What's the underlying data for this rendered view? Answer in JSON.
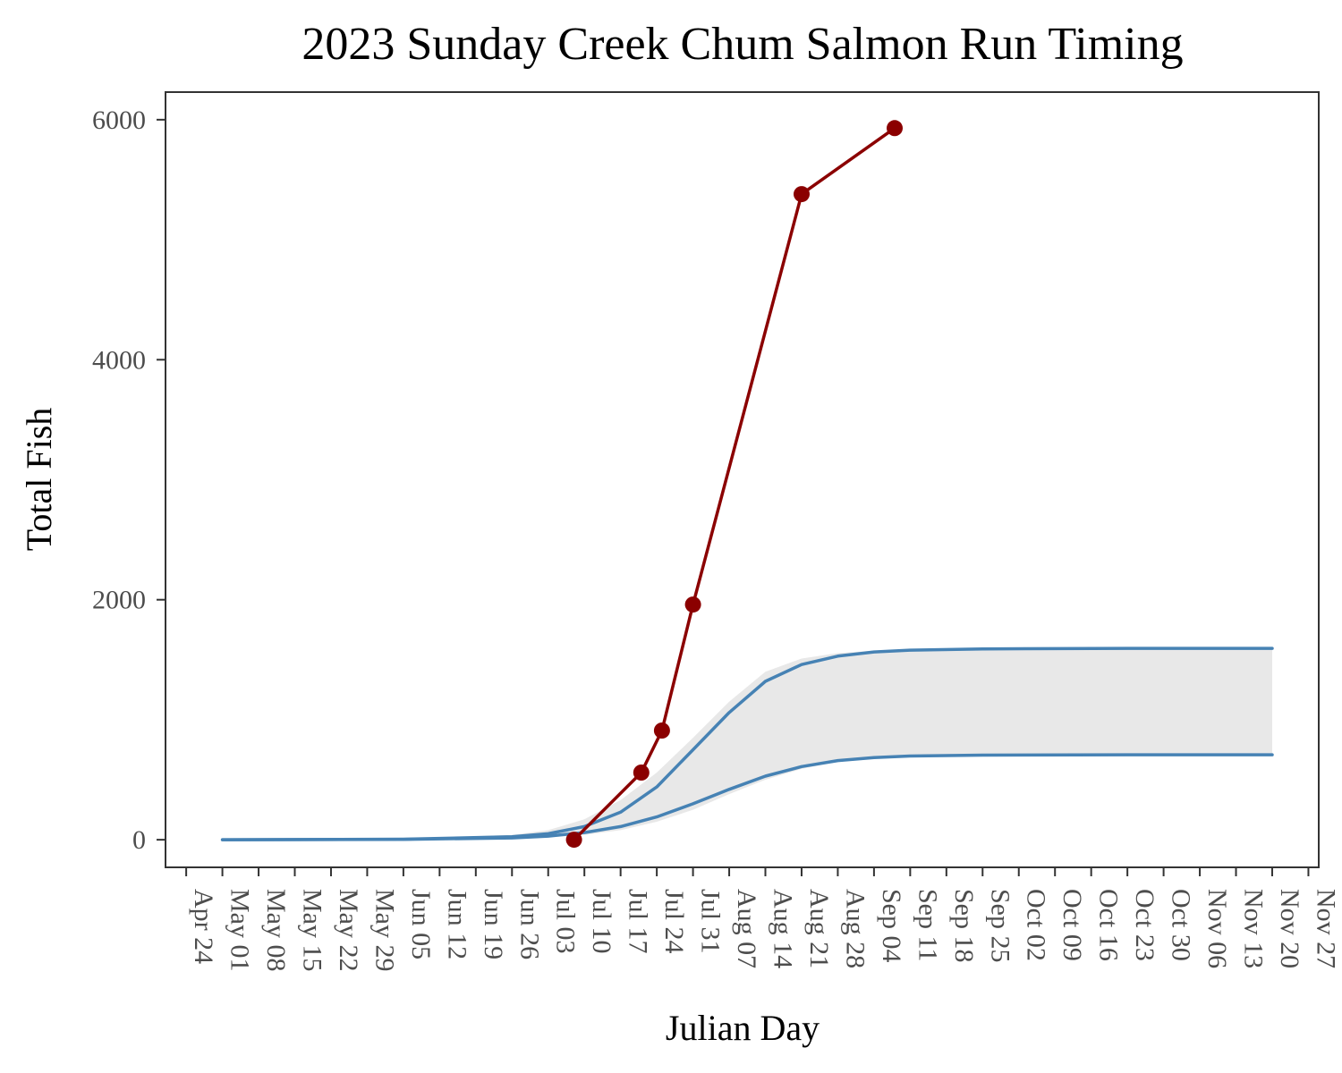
{
  "chart_data": {
    "type": "line",
    "title": "2023 Sunday Creek Chum Salmon Run Timing",
    "xlabel": "Julian Day",
    "ylabel": "Total Fish",
    "ylim": [
      -230,
      6230
    ],
    "xlim": [
      "2023-04-20",
      "2023-11-29"
    ],
    "x_ticks": [
      "Apr 24",
      "May 01",
      "May 08",
      "May 15",
      "May 22",
      "May 29",
      "Jun 05",
      "Jun 12",
      "Jun 19",
      "Jun 26",
      "Jul 03",
      "Jul 10",
      "Jul 17",
      "Jul 24",
      "Jul 31",
      "Aug 07",
      "Aug 14",
      "Aug 21",
      "Aug 28",
      "Sep 04",
      "Sep 11",
      "Sep 18",
      "Sep 25",
      "Oct 02",
      "Oct 09",
      "Oct 16",
      "Oct 23",
      "Oct 30",
      "Nov 06",
      "Nov 13",
      "Nov 20",
      "Nov 27"
    ],
    "y_ticks": [
      0,
      2000,
      4000,
      6000
    ],
    "grid": false,
    "legend": "none",
    "colors": {
      "observed": "#8b0000",
      "model_curves": "#4682b4",
      "ribbon": "#e8e8e8",
      "panel_border": "#333333"
    },
    "series": [
      {
        "role": "observed",
        "style": "line+points",
        "x": [
          "2023-07-08",
          "2023-07-21",
          "2023-07-25",
          "2023-07-31",
          "2023-08-21",
          "2023-09-08"
        ],
        "y": [
          0,
          560,
          910,
          1960,
          5380,
          5930
        ]
      },
      {
        "role": "upper_curve",
        "style": "line",
        "x": [
          "2023-05-01",
          "2023-06-05",
          "2023-06-26",
          "2023-07-03",
          "2023-07-10",
          "2023-07-17",
          "2023-07-24",
          "2023-07-31",
          "2023-08-07",
          "2023-08-14",
          "2023-08-21",
          "2023-08-28",
          "2023-09-04",
          "2023-09-11",
          "2023-09-25",
          "2023-10-23",
          "2023-11-20"
        ],
        "y": [
          0,
          5,
          25,
          50,
          110,
          230,
          440,
          750,
          1060,
          1320,
          1460,
          1530,
          1565,
          1580,
          1590,
          1595,
          1595
        ]
      },
      {
        "role": "lower_curve",
        "style": "line",
        "x": [
          "2023-05-01",
          "2023-06-05",
          "2023-06-26",
          "2023-07-03",
          "2023-07-10",
          "2023-07-17",
          "2023-07-24",
          "2023-07-31",
          "2023-08-07",
          "2023-08-14",
          "2023-08-21",
          "2023-08-28",
          "2023-09-04",
          "2023-09-11",
          "2023-09-25",
          "2023-10-23",
          "2023-11-20"
        ],
        "y": [
          0,
          3,
          15,
          30,
          60,
          110,
          190,
          300,
          420,
          530,
          610,
          660,
          685,
          698,
          705,
          708,
          708
        ]
      },
      {
        "role": "ribbon",
        "style": "band",
        "x": [
          "2023-05-01",
          "2023-06-05",
          "2023-06-26",
          "2023-07-03",
          "2023-07-10",
          "2023-07-17",
          "2023-07-24",
          "2023-07-31",
          "2023-08-07",
          "2023-08-14",
          "2023-08-21",
          "2023-08-28",
          "2023-09-04",
          "2023-09-11",
          "2023-09-25",
          "2023-10-23",
          "2023-11-20"
        ],
        "ymin": [
          0,
          2,
          10,
          20,
          40,
          80,
          150,
          250,
          380,
          500,
          590,
          650,
          680,
          695,
          703,
          708,
          708
        ],
        "ymax": [
          0,
          8,
          40,
          80,
          170,
          330,
          560,
          850,
          1150,
          1400,
          1510,
          1555,
          1575,
          1585,
          1592,
          1595,
          1595
        ]
      }
    ]
  }
}
